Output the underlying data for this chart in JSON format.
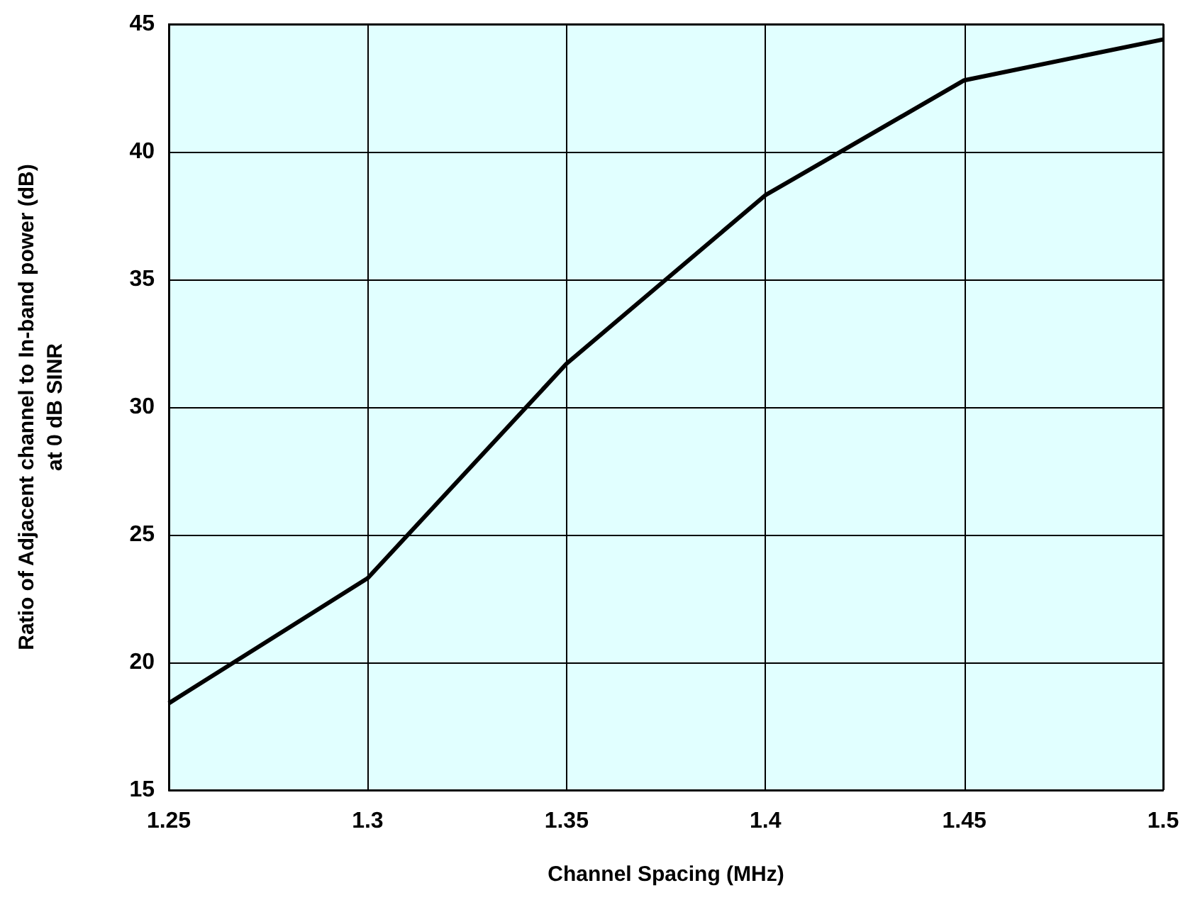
{
  "chart_data": {
    "type": "line",
    "xlabel": "Channel Spacing (MHz)",
    "ylabel": "Ratio of Adjacent channel to In-band power (dB)\nat 0 dB SINR",
    "x": [
      1.25,
      1.3,
      1.35,
      1.4,
      1.45,
      1.5
    ],
    "series": [
      {
        "color": "#000000",
        "values": [
          18.4,
          23.3,
          31.7,
          38.3,
          42.8,
          44.4
        ]
      }
    ],
    "xlim": [
      1.25,
      1.5
    ],
    "xticks": [
      1.25,
      1.3,
      1.35,
      1.4,
      1.45,
      1.5
    ],
    "ylim": [
      15,
      45
    ],
    "yticks": [
      15,
      20,
      25,
      30,
      35,
      40,
      45
    ],
    "grid": true,
    "marker": "none",
    "line_style": "solid"
  }
}
